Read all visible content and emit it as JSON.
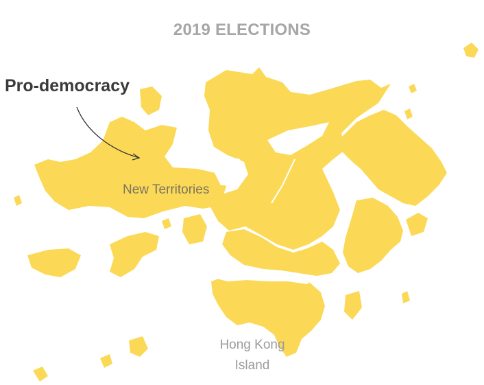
{
  "title": "2019 ELECTIONS",
  "callout": "Pro-democracy",
  "labels": {
    "new_territories": "New Territories",
    "hk_island_line1": "Hong Kong",
    "hk_island_line2": "Island"
  },
  "colors": {
    "land": "#fbd957",
    "title": "#a6a6a6",
    "callout": "#3a3a3a",
    "label": "#7b7460",
    "background": "#ffffff"
  }
}
